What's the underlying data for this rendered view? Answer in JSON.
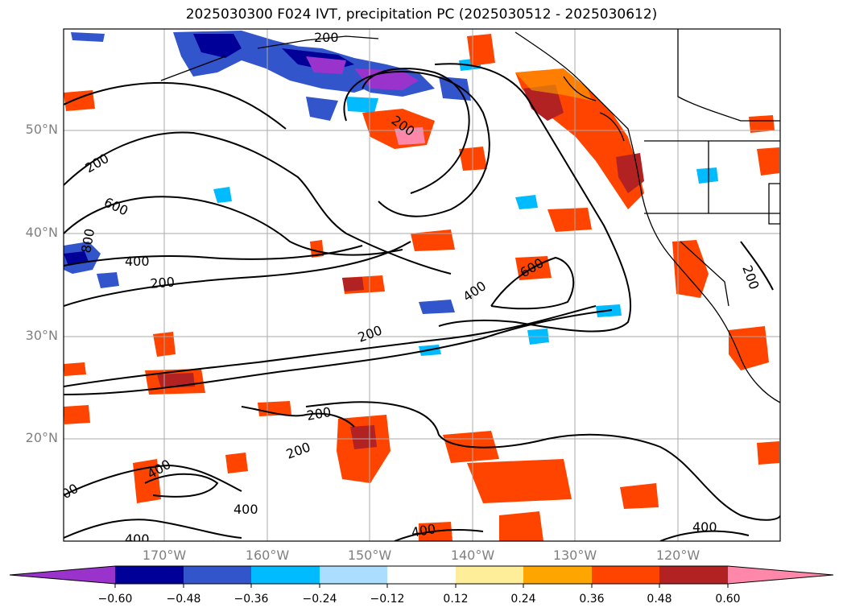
{
  "title": "2025030300 F024 IVT, precipitation PC (2025030512 - 2025030612)",
  "map": {
    "lat_labels": [
      "50°N",
      "40°N",
      "30°N",
      "20°N"
    ],
    "lon_labels": [
      "170°W",
      "160°W",
      "150°W",
      "140°W",
      "130°W",
      "120°W"
    ],
    "contour_labels": [
      "200",
      "200",
      "600",
      "800",
      "400",
      "200",
      "200",
      "400",
      "600",
      "200",
      "200",
      "400",
      "400",
      "400",
      "400",
      "400",
      "200",
      "200",
      "200"
    ]
  },
  "colorbar": {
    "colors": [
      "#9933cc",
      "#000099",
      "#3355cc",
      "#00bbff",
      "#aaddff",
      "#ffffff",
      "#ffee99",
      "#ffa500",
      "#ff4400",
      "#b22222",
      "#ff88aa"
    ],
    "ticks": [
      "−0.60",
      "−0.48",
      "−0.36",
      "−0.24",
      "−0.12",
      "0.12",
      "0.24",
      "0.36",
      "0.48",
      "0.60"
    ]
  }
}
